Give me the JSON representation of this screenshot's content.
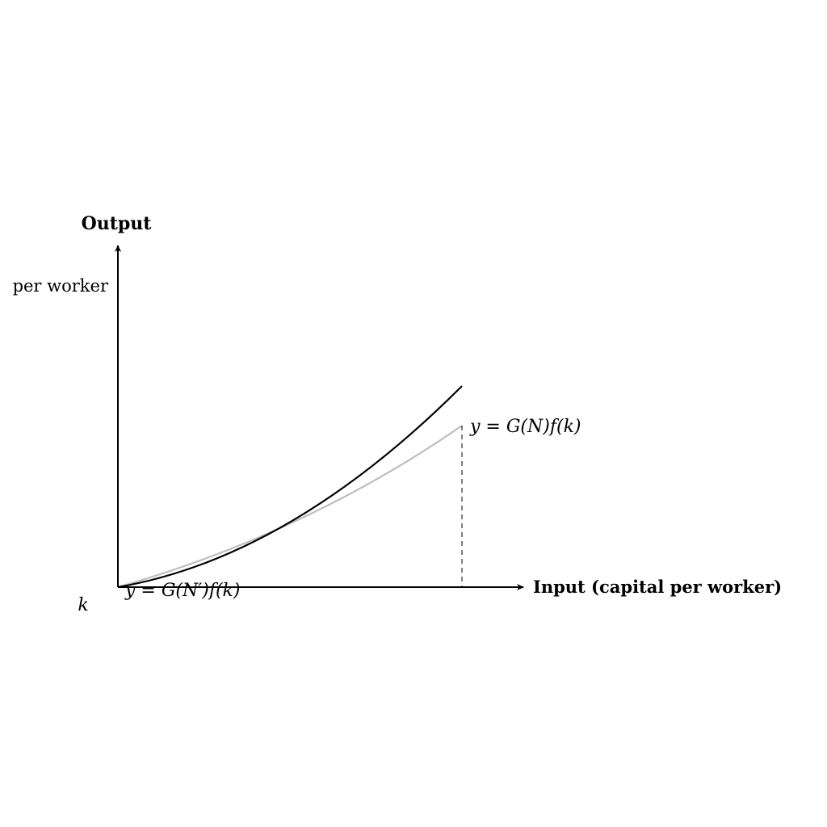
{
  "y_axis": {
    "title": "Output",
    "subtitle": "per worker"
  },
  "x_axis": {
    "title": "Input (capital per worker)",
    "origin_label": "k"
  },
  "curves": {
    "upper": {
      "color": "#000000"
    },
    "lower": {
      "label": "y = G(N)f(k)",
      "color": "#bdbdbd"
    },
    "origin_label": "y = G(N′)f(k)"
  },
  "marker": {
    "style": "dashed"
  }
}
